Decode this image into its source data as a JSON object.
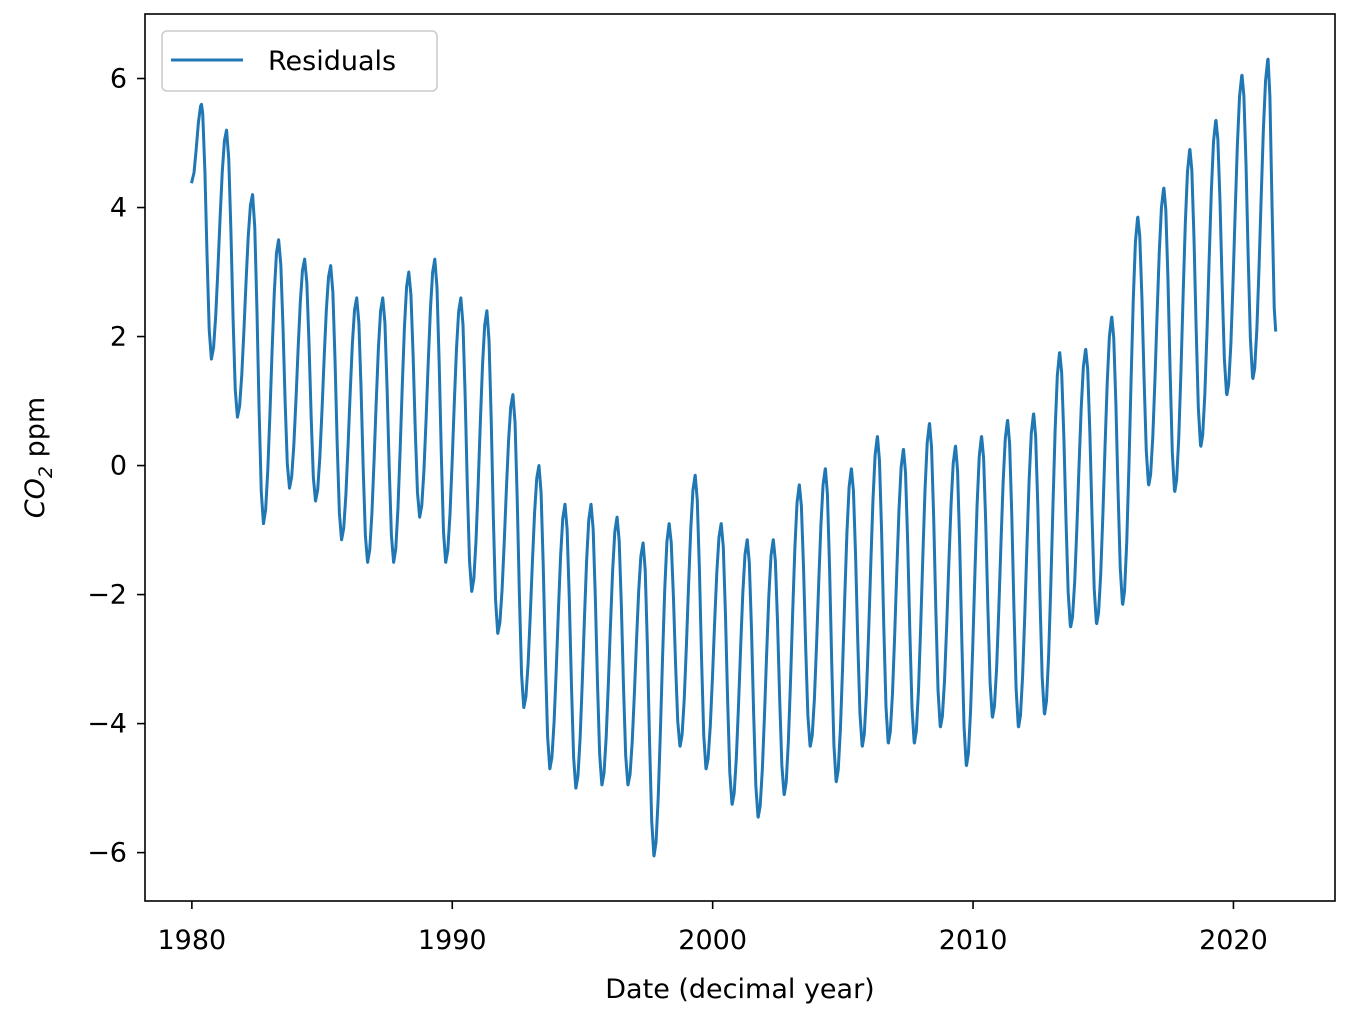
{
  "chart_data": {
    "type": "line",
    "title": "",
    "xlabel": "Date (decimal year)",
    "ylabel": {
      "pre": "CO",
      "sub": "2",
      "post": " ppm"
    },
    "xlim": [
      1978.2,
      2023.9
    ],
    "ylim": [
      -6.75,
      7.0
    ],
    "xticks": [
      1980,
      1990,
      2000,
      2010,
      2020
    ],
    "xtick_labels": [
      "1980",
      "1990",
      "2000",
      "2010",
      "2020"
    ],
    "yticks": [
      -6,
      -4,
      -2,
      0,
      2,
      4,
      6
    ],
    "ytick_labels": [
      "−6",
      "−4",
      "−2",
      "0",
      "2",
      "4",
      "6"
    ],
    "grid": false,
    "legend_position": "upper-left",
    "color": "#1f77b4",
    "series": [
      {
        "name": "Residuals",
        "x_start": 1980.0,
        "x_step": 0.0833,
        "peaks": [
          [
            1980.37,
            5.6
          ],
          [
            1981.33,
            5.2
          ],
          [
            1982.33,
            4.2
          ],
          [
            1983.33,
            3.5
          ],
          [
            1984.33,
            3.2
          ],
          [
            1985.33,
            3.1
          ],
          [
            1986.33,
            2.6
          ],
          [
            1987.33,
            2.6
          ],
          [
            1988.33,
            3.0
          ],
          [
            1989.33,
            3.2
          ],
          [
            1990.33,
            2.6
          ],
          [
            1991.33,
            2.4
          ],
          [
            1992.33,
            1.1
          ],
          [
            1993.33,
            0.0
          ],
          [
            1994.33,
            -0.6
          ],
          [
            1995.33,
            -0.6
          ],
          [
            1996.33,
            -0.8
          ],
          [
            1997.33,
            -1.2
          ],
          [
            1998.33,
            -0.9
          ],
          [
            1999.33,
            -0.15
          ],
          [
            2000.33,
            -0.9
          ],
          [
            2001.33,
            -1.15
          ],
          [
            2002.33,
            -1.15
          ],
          [
            2003.33,
            -0.3
          ],
          [
            2004.33,
            -0.05
          ],
          [
            2005.33,
            -0.05
          ],
          [
            2006.33,
            0.45
          ],
          [
            2007.33,
            0.25
          ],
          [
            2008.33,
            0.65
          ],
          [
            2009.33,
            0.3
          ],
          [
            2010.33,
            0.45
          ],
          [
            2011.33,
            0.7
          ],
          [
            2012.33,
            0.8
          ],
          [
            2013.33,
            1.75
          ],
          [
            2014.33,
            1.8
          ],
          [
            2015.33,
            2.3
          ],
          [
            2016.33,
            3.85
          ],
          [
            2017.33,
            4.3
          ],
          [
            2018.33,
            4.9
          ],
          [
            2019.33,
            5.35
          ],
          [
            2020.33,
            6.05
          ],
          [
            2021.33,
            6.3
          ]
        ],
        "troughs": [
          [
            1980.75,
            1.65
          ],
          [
            1981.75,
            0.75
          ],
          [
            1982.75,
            -0.9
          ],
          [
            1983.75,
            -0.35
          ],
          [
            1984.75,
            -0.55
          ],
          [
            1985.75,
            -1.15
          ],
          [
            1986.75,
            -1.5
          ],
          [
            1987.75,
            -1.5
          ],
          [
            1988.75,
            -0.8
          ],
          [
            1989.75,
            -1.5
          ],
          [
            1990.75,
            -1.95
          ],
          [
            1991.75,
            -2.6
          ],
          [
            1992.75,
            -3.75
          ],
          [
            1993.75,
            -4.7
          ],
          [
            1994.75,
            -5.0
          ],
          [
            1995.75,
            -4.95
          ],
          [
            1996.75,
            -4.95
          ],
          [
            1997.75,
            -6.05
          ],
          [
            1998.75,
            -4.35
          ],
          [
            1999.75,
            -4.7
          ],
          [
            2000.75,
            -5.25
          ],
          [
            2001.75,
            -5.45
          ],
          [
            2002.75,
            -5.1
          ],
          [
            2003.75,
            -4.35
          ],
          [
            2004.75,
            -4.9
          ],
          [
            2005.75,
            -4.35
          ],
          [
            2006.75,
            -4.3
          ],
          [
            2007.75,
            -4.3
          ],
          [
            2008.75,
            -4.05
          ],
          [
            2009.75,
            -4.65
          ],
          [
            2010.75,
            -3.9
          ],
          [
            2011.75,
            -4.05
          ],
          [
            2012.75,
            -3.85
          ],
          [
            2013.75,
            -2.5
          ],
          [
            2014.75,
            -2.45
          ],
          [
            2015.75,
            -2.15
          ],
          [
            2016.75,
            -0.3
          ],
          [
            2017.75,
            -0.4
          ],
          [
            2018.75,
            0.3
          ],
          [
            2019.75,
            1.1
          ],
          [
            2020.75,
            1.35
          ]
        ],
        "x_end": 2021.62,
        "y_end": 2.1
      }
    ]
  }
}
